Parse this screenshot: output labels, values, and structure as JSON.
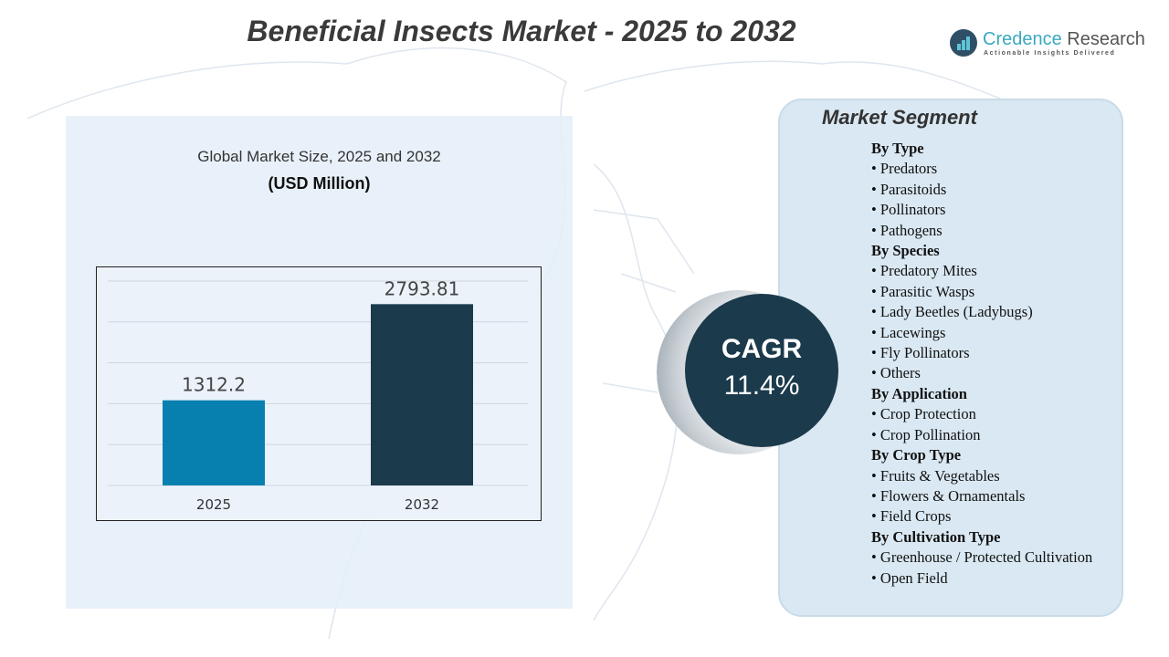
{
  "title": "Beneficial Insects Market - 2025 to 2032",
  "logo": {
    "name_a": "Credence",
    "name_b": " Research",
    "tagline": "Actionable Insights Delivered"
  },
  "chart_subtitle": "Global Market Size,  2025 and 2032",
  "chart_unit": "(USD Million)",
  "chart_data": {
    "type": "bar",
    "categories": [
      "2025",
      "2032"
    ],
    "values": [
      1312.2,
      2793.81
    ],
    "data_labels": [
      "1312.2",
      "2793.81"
    ],
    "colors": [
      "#0780b0",
      "#1b3a4b"
    ],
    "title": "Global Market Size,  2025 and 2032",
    "ylabel": "(USD Million)",
    "ylim": [
      0,
      3150
    ],
    "grid": true
  },
  "cagr": {
    "label": "CAGR",
    "value": "11.4%"
  },
  "segment": {
    "title": "Market Segment",
    "groups": [
      {
        "heading": "By Type",
        "items": [
          "• Predators",
          "• Parasitoids",
          "• Pollinators",
          "• Pathogens"
        ]
      },
      {
        "heading": "By Species",
        "items": [
          "• Predatory Mites",
          "• Parasitic Wasps",
          "• Lady Beetles  (Ladybugs)",
          "• Lacewings",
          "• Fly Pollinators",
          "• Others"
        ]
      },
      {
        "heading": "By Application",
        "items": [
          "• Crop Protection",
          "• Crop Pollination"
        ]
      },
      {
        "heading": "By Crop Type",
        "items": [
          "• Fruits & Vegetables",
          "• Flowers & Ornamentals",
          "• Field Crops"
        ]
      },
      {
        "heading": "By Cultivation Type",
        "items": [
          "• Greenhouse / Protected Cultivation",
          "• Open Field"
        ]
      }
    ]
  }
}
